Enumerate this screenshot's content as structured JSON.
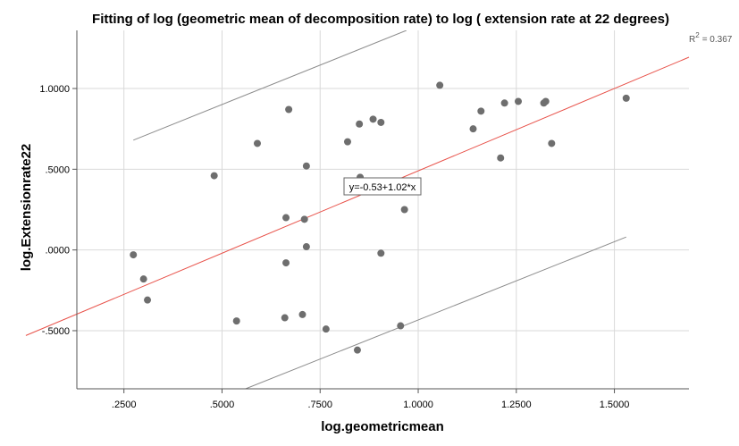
{
  "chart_data": {
    "type": "scatter",
    "title": "Fitting of log (geometric mean of decomposition rate) to log ( extension rate at 22 degrees)",
    "xlabel": "log.geometricmean",
    "ylabel": "log.Extensionrate22",
    "xlim": [
      0.13,
      1.69
    ],
    "ylim": [
      -0.86,
      1.36
    ],
    "x_ticks": [
      0.25,
      0.5,
      0.75,
      1.0,
      1.25,
      1.5
    ],
    "x_tick_labels": [
      ".2500",
      ".5000",
      ".7500",
      "1.0000",
      "1.2500",
      "1.5000"
    ],
    "y_ticks": [
      1.0,
      0.5,
      0.0,
      -0.5
    ],
    "y_tick_labels": [
      "1.0000",
      ".5000",
      ".0000",
      "-.5000"
    ],
    "points": [
      {
        "x": 0.274,
        "y": -0.03
      },
      {
        "x": 0.3,
        "y": -0.18
      },
      {
        "x": 0.31,
        "y": -0.31
      },
      {
        "x": 0.48,
        "y": 0.46
      },
      {
        "x": 0.537,
        "y": -0.44
      },
      {
        "x": 0.59,
        "y": 0.66
      },
      {
        "x": 0.66,
        "y": -0.42
      },
      {
        "x": 0.663,
        "y": 0.2
      },
      {
        "x": 0.663,
        "y": -0.08
      },
      {
        "x": 0.67,
        "y": 0.87
      },
      {
        "x": 0.705,
        "y": -0.4
      },
      {
        "x": 0.71,
        "y": 0.19
      },
      {
        "x": 0.715,
        "y": 0.52
      },
      {
        "x": 0.715,
        "y": 0.02
      },
      {
        "x": 0.765,
        "y": -0.49
      },
      {
        "x": 0.82,
        "y": 0.67
      },
      {
        "x": 0.845,
        "y": -0.62
      },
      {
        "x": 0.85,
        "y": 0.78
      },
      {
        "x": 0.852,
        "y": 0.45
      },
      {
        "x": 0.885,
        "y": 0.81
      },
      {
        "x": 0.905,
        "y": 0.79
      },
      {
        "x": 0.905,
        "y": -0.02
      },
      {
        "x": 0.955,
        "y": -0.47
      },
      {
        "x": 0.965,
        "y": 0.25
      },
      {
        "x": 1.055,
        "y": 1.02
      },
      {
        "x": 1.14,
        "y": 0.75
      },
      {
        "x": 1.16,
        "y": 0.86
      },
      {
        "x": 1.21,
        "y": 0.57
      },
      {
        "x": 1.22,
        "y": 0.91
      },
      {
        "x": 1.255,
        "y": 0.92
      },
      {
        "x": 1.32,
        "y": 0.91
      },
      {
        "x": 1.325,
        "y": 0.92
      },
      {
        "x": 1.34,
        "y": 0.66
      },
      {
        "x": 1.53,
        "y": 0.94
      }
    ],
    "fit_line": {
      "intercept": -0.53,
      "slope": 1.02,
      "color": "#e8524a"
    },
    "prediction_band": {
      "upper": [
        [
          0.274,
          0.68
        ],
        [
          0.97,
          1.36
        ]
      ],
      "lower": [
        [
          0.56,
          -0.86
        ],
        [
          1.53,
          0.08
        ]
      ],
      "color": "#8c8c8c"
    },
    "equation_label": "y=-0.53+1.02*x",
    "r2_symbol": "R",
    "r2_exponent": "2",
    "r2_value": "= 0.367",
    "point_color": "#6e6e6e",
    "grid": true
  }
}
